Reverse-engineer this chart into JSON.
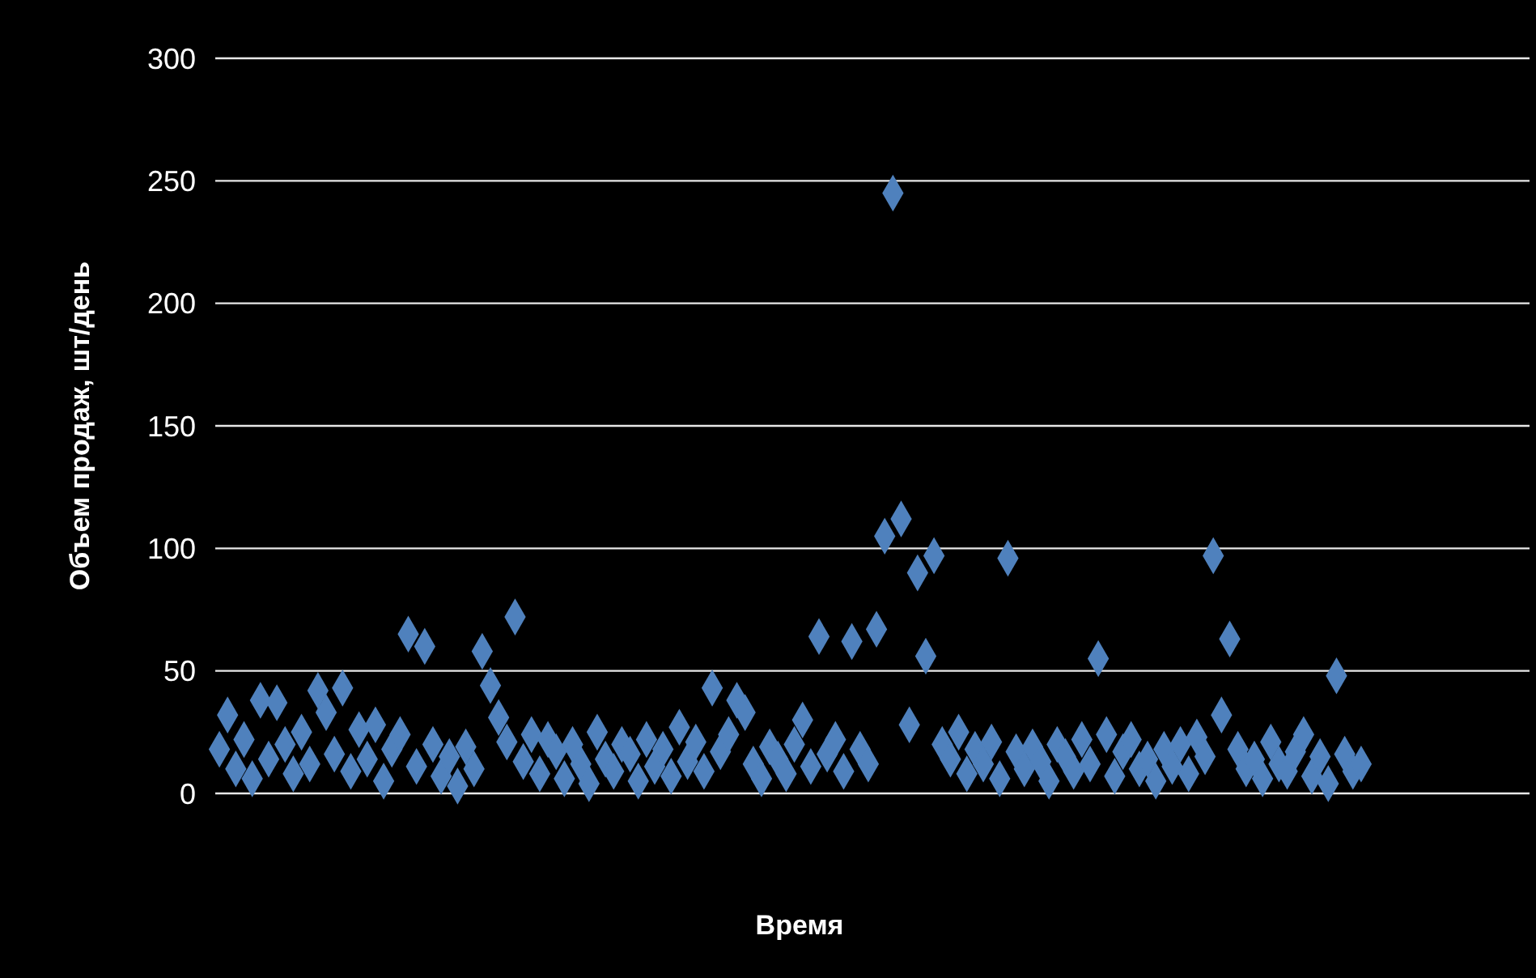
{
  "chart_data": {
    "type": "scatter",
    "xlabel": "Время",
    "ylabel": "Объем продаж, шт/день",
    "categories": [
      null,
      null,
      null,
      null,
      null,
      null,
      null,
      null,
      null,
      null,
      null,
      null,
      null,
      null,
      null,
      null,
      null,
      null,
      null,
      null,
      null,
      null,
      null,
      null,
      null,
      null,
      null,
      null,
      null,
      null,
      null,
      null,
      null,
      null,
      null,
      null,
      null,
      null,
      null,
      null,
      null,
      null,
      null,
      null,
      null,
      null,
      null,
      null,
      null,
      null,
      null,
      null,
      null,
      null,
      null,
      null,
      null,
      null,
      null,
      null,
      null,
      null,
      null,
      null,
      null,
      null,
      null,
      null,
      null,
      null,
      null,
      null,
      null,
      null,
      null,
      null,
      null,
      null,
      null,
      null,
      null,
      null,
      null,
      null,
      null,
      null,
      null,
      null,
      null,
      null,
      null,
      null,
      null,
      null,
      null,
      null,
      null,
      null,
      null,
      null,
      null,
      null,
      null,
      null,
      null,
      null,
      null,
      null,
      null,
      null,
      null,
      null,
      null,
      null,
      null,
      null,
      null,
      null,
      null,
      null,
      null,
      null,
      null,
      null,
      null,
      null,
      null,
      null,
      null,
      null,
      null,
      null,
      null,
      null,
      null,
      null,
      null,
      null,
      null,
      null,
      null,
      null,
      null,
      null,
      null,
      null,
      null,
      null,
      null,
      null,
      null,
      null,
      null,
      null,
      null,
      null,
      null,
      null,
      null,
      null
    ],
    "values": [
      18,
      32,
      10,
      22,
      6,
      38,
      14,
      37,
      20,
      8,
      25,
      12,
      42,
      33,
      16,
      43,
      9,
      26,
      14,
      28,
      5,
      18,
      24,
      65,
      11,
      60,
      20,
      7,
      15,
      3,
      19,
      10,
      58,
      44,
      31,
      21,
      72,
      13,
      24,
      8,
      22,
      17,
      6,
      20,
      12,
      4,
      25,
      14,
      9,
      20,
      16,
      5,
      22,
      11,
      18,
      7,
      27,
      13,
      21,
      9,
      43,
      17,
      24,
      38,
      33,
      12,
      6,
      19,
      14,
      8,
      20,
      30,
      11,
      64,
      16,
      22,
      9,
      62,
      18,
      12,
      67,
      105,
      245,
      112,
      28,
      90,
      56,
      97,
      20,
      14,
      25,
      8,
      18,
      12,
      21,
      6,
      96,
      17,
      10,
      19,
      13,
      5,
      20,
      15,
      9,
      22,
      12,
      55,
      24,
      7,
      17,
      22,
      10,
      14,
      5,
      18,
      11,
      20,
      8,
      23,
      15,
      97,
      32,
      63,
      18,
      10,
      14,
      6,
      21,
      12,
      9,
      17,
      24,
      7,
      15,
      4,
      48,
      16,
      9,
      12,
      null,
      null,
      null,
      null,
      null,
      null,
      null,
      null,
      null,
      null,
      null,
      null,
      null,
      null,
      null,
      null,
      null,
      null,
      null,
      null
    ],
    "color": "#4f81bd",
    "marker": "diamond",
    "ylim": [
      0,
      300
    ],
    "yticks": [
      0,
      50,
      100,
      150,
      200,
      250,
      300
    ],
    "grid": "y"
  }
}
